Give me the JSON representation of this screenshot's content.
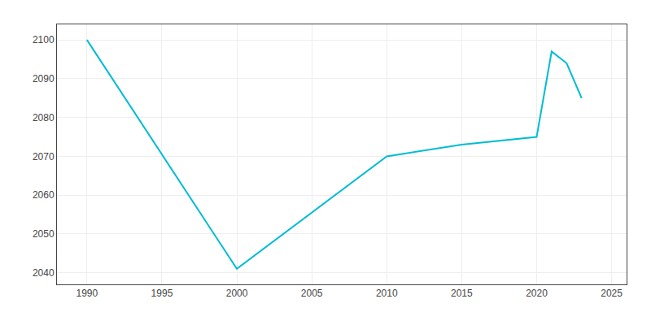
{
  "chart_data": {
    "type": "line",
    "x": [
      1990,
      2000,
      2010,
      2015,
      2020,
      2021,
      2022,
      2023
    ],
    "values": [
      2100,
      2041,
      2070,
      2073,
      2075,
      2097,
      2094,
      2085
    ],
    "color": "#00bcd4",
    "xlim": [
      1988,
      2026
    ],
    "ylim": [
      2037,
      2104
    ],
    "xticks": [
      1990,
      1995,
      2000,
      2005,
      2010,
      2015,
      2020,
      2025
    ],
    "yticks": [
      2040,
      2050,
      2060,
      2070,
      2080,
      2090,
      2100
    ],
    "grid": true
  }
}
